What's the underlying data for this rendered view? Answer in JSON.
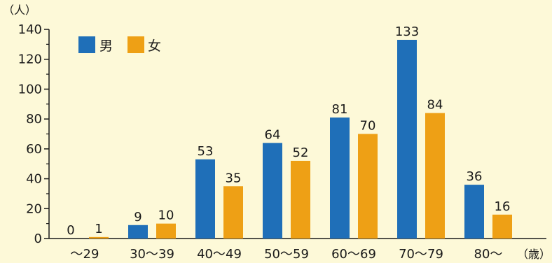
{
  "chart_data": {
    "type": "bar",
    "y_unit": "（人）",
    "x_unit": "（歳）",
    "categories": [
      "〜29",
      "30〜39",
      "40〜49",
      "50〜59",
      "60〜69",
      "70〜79",
      "80〜"
    ],
    "series": [
      {
        "name": "男",
        "color": "#1f6fb8",
        "values": [
          0,
          9,
          53,
          64,
          81,
          133,
          36
        ]
      },
      {
        "name": "女",
        "color": "#eea015",
        "values": [
          1,
          10,
          35,
          52,
          70,
          84,
          16
        ]
      }
    ],
    "ylim": [
      0,
      140
    ],
    "yticks": [
      0,
      20,
      40,
      60,
      80,
      100,
      120,
      140
    ],
    "legend_position": "top-left",
    "grid": false,
    "background": "#fdf9d8"
  }
}
